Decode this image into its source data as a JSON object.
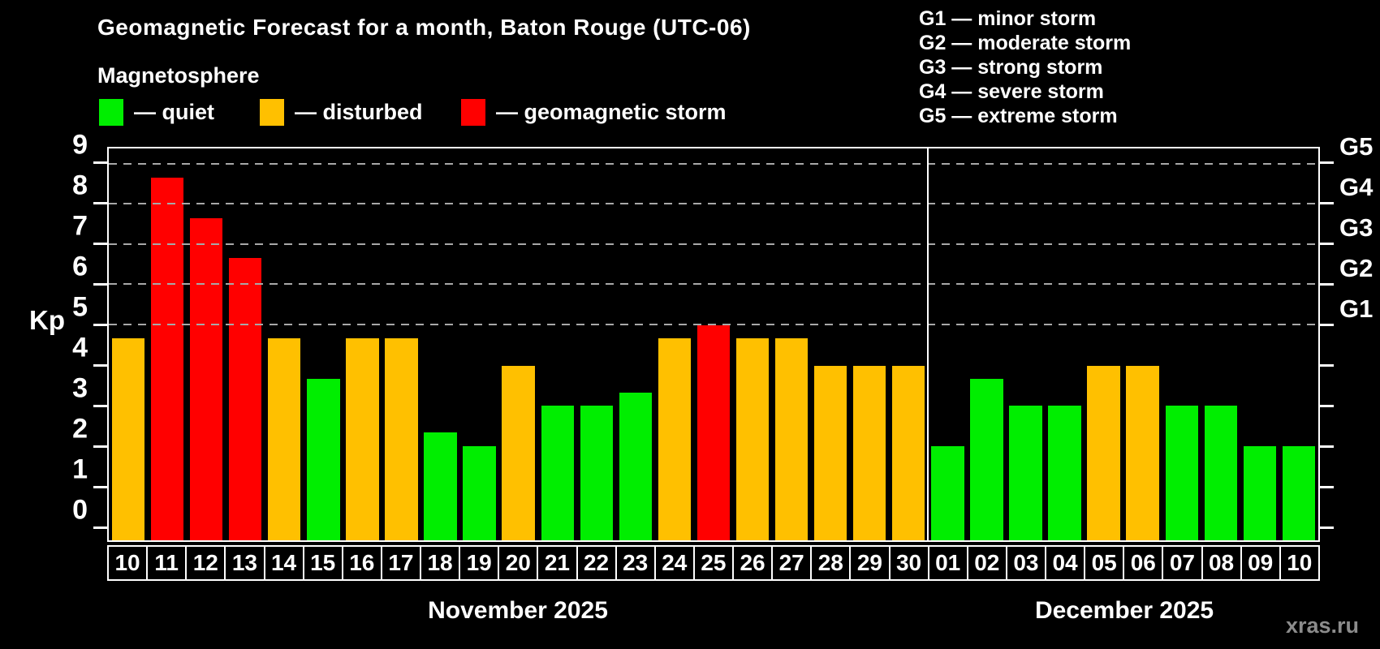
{
  "title": "Geomagnetic Forecast for a month, Baton Rouge (UTC-06)",
  "subtitle": "Magnetosphere",
  "legend": {
    "quiet": {
      "label": "— quiet",
      "color": "#00ee00"
    },
    "disturbed": {
      "label": "— disturbed",
      "color": "#ffc000"
    },
    "storm": {
      "label": "— geomagnetic storm",
      "color": "#ff0000"
    }
  },
  "g_scale_legend": [
    "G1 — minor storm",
    "G2 — moderate storm",
    "G3 — strong storm",
    "G4 — severe storm",
    "G5 — extreme storm"
  ],
  "watermark": "xras.ru",
  "chart_data": {
    "type": "bar",
    "ylabel": "Kp",
    "ylim": [
      -0.35,
      9.4
    ],
    "yticks": [
      0,
      1,
      2,
      3,
      4,
      5,
      6,
      7,
      8,
      9
    ],
    "gridlines": [
      5,
      6,
      7,
      8,
      9
    ],
    "right_axis_labels": [
      {
        "value": 5,
        "label": "G1"
      },
      {
        "value": 6,
        "label": "G2"
      },
      {
        "value": 7,
        "label": "G3"
      },
      {
        "value": 8,
        "label": "G4"
      },
      {
        "value": 9,
        "label": "G5"
      }
    ],
    "months": [
      {
        "label": "November 2025",
        "days": 21
      },
      {
        "label": "December 2025",
        "days": 10
      }
    ],
    "categories": [
      "10",
      "11",
      "12",
      "13",
      "14",
      "15",
      "16",
      "17",
      "18",
      "19",
      "20",
      "21",
      "22",
      "23",
      "24",
      "25",
      "26",
      "27",
      "28",
      "29",
      "30",
      "01",
      "02",
      "03",
      "04",
      "05",
      "06",
      "07",
      "08",
      "09",
      "10"
    ],
    "values": [
      4.67,
      8.67,
      7.67,
      6.67,
      4.67,
      3.67,
      4.67,
      4.67,
      2.33,
      2.0,
      4.0,
      3.0,
      3.0,
      3.33,
      4.67,
      5.0,
      4.67,
      4.67,
      4.0,
      4.0,
      4.0,
      2.0,
      3.67,
      3.0,
      3.0,
      4.0,
      4.0,
      3.0,
      3.0,
      2.0,
      2.0
    ],
    "statuses": [
      "disturbed",
      "storm",
      "storm",
      "storm",
      "disturbed",
      "quiet",
      "disturbed",
      "disturbed",
      "quiet",
      "quiet",
      "disturbed",
      "quiet",
      "quiet",
      "quiet",
      "disturbed",
      "storm",
      "disturbed",
      "disturbed",
      "disturbed",
      "disturbed",
      "disturbed",
      "quiet",
      "quiet",
      "quiet",
      "quiet",
      "disturbed",
      "disturbed",
      "quiet",
      "quiet",
      "quiet",
      "quiet"
    ],
    "grid": true,
    "legend_position": "top"
  }
}
